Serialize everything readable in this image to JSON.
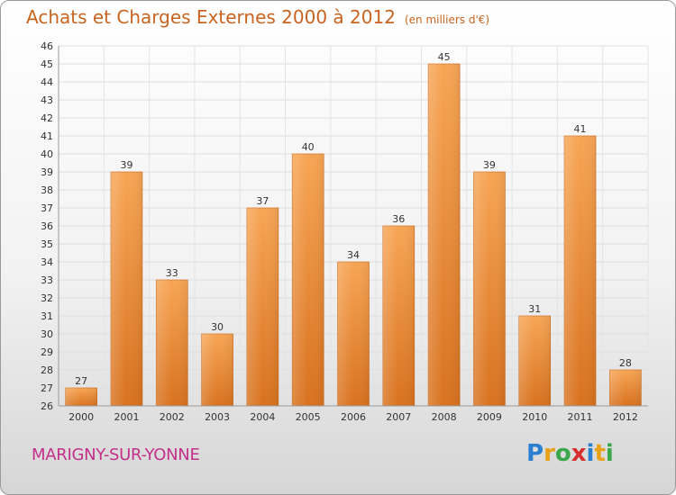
{
  "header": {
    "title": "Achats et Charges Externes 2000 à 2012",
    "subtitle": "(en milliers d'€)"
  },
  "footer": {
    "town": "MARIGNY-SUR-YONNE",
    "logo_letters": [
      "P",
      "r",
      "o",
      "x",
      "i",
      "t",
      "i"
    ],
    "logo_colors": [
      "#2a7fd0",
      "#e8a21a",
      "#3aa84a",
      "#d62d2d",
      "#2a7fd0",
      "#e8a21a",
      "#3aa84a"
    ]
  },
  "chart_data": {
    "type": "bar",
    "categories": [
      "2000",
      "2001",
      "2002",
      "2003",
      "2004",
      "2005",
      "2006",
      "2007",
      "2008",
      "2009",
      "2010",
      "2011",
      "2012"
    ],
    "values": [
      27,
      39,
      33,
      30,
      37,
      40,
      34,
      36,
      45,
      39,
      31,
      41,
      28
    ],
    "ylim": [
      26,
      46
    ],
    "yticks": [
      26,
      27,
      28,
      29,
      30,
      31,
      32,
      33,
      34,
      35,
      36,
      37,
      38,
      39,
      40,
      41,
      42,
      43,
      44,
      45,
      46
    ],
    "grid": true,
    "bar_color": "#f0913c"
  }
}
